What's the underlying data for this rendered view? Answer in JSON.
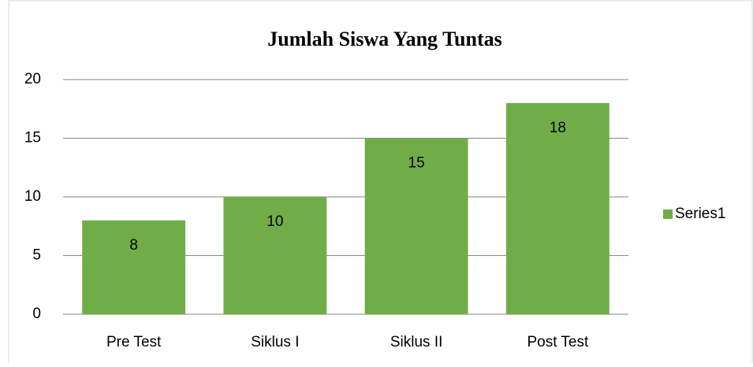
{
  "chart_data": {
    "type": "bar",
    "title": "Jumlah Siswa Yang Tuntas",
    "categories": [
      "Pre Test",
      "Siklus I",
      "Siklus II",
      "Post Test"
    ],
    "series": [
      {
        "name": "Series1",
        "color": "#70ad47",
        "values": [
          8,
          10,
          15,
          18
        ]
      }
    ],
    "ylim": [
      0,
      20
    ],
    "yticks": [
      0,
      5,
      10,
      15,
      20
    ],
    "grid": true,
    "legend": "right"
  }
}
